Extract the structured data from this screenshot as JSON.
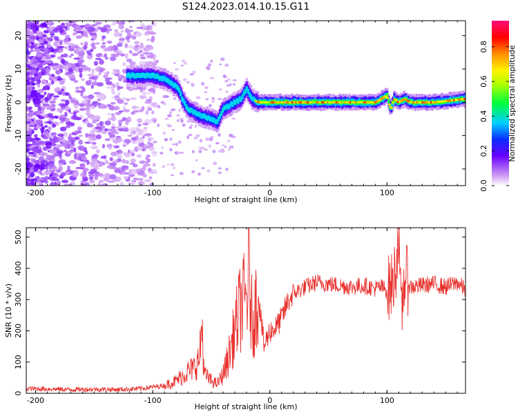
{
  "title": "S124.2023.014.10.15.G11",
  "chart_data": [
    {
      "type": "heatmap",
      "xlabel": "Height of straight line (km)",
      "ylabel": "Frequency (Hz)",
      "xlim": [
        -208,
        167
      ],
      "ylim": [
        -25,
        24.5
      ],
      "x_ticks": [
        -200,
        -100,
        0,
        100
      ],
      "y_ticks": [
        -20,
        -10,
        0,
        10,
        20
      ],
      "colorbar": {
        "label": "Normalized spectral amplitude",
        "ticks": [
          0.0,
          0.2,
          0.4,
          0.6,
          0.8
        ],
        "range": [
          0,
          0.95
        ]
      },
      "ridge": {
        "x": [
          -122,
          -110,
          -100,
          -90,
          -85,
          -78,
          -75,
          -70,
          -60,
          -50,
          -45,
          -40,
          -35,
          -30,
          -25,
          -20,
          -15,
          -10,
          -5,
          0,
          20,
          50,
          90,
          100,
          103,
          106,
          110,
          115,
          120,
          140,
          167
        ],
        "y": [
          8,
          8,
          8,
          7,
          6,
          4,
          1,
          -2,
          -4,
          -5,
          -6,
          -2,
          -1,
          0,
          1,
          4,
          1,
          0,
          0,
          0,
          0,
          0,
          0,
          2,
          -2,
          1,
          0,
          1,
          0,
          0,
          1
        ]
      }
    },
    {
      "type": "line",
      "xlabel": "Height of straight line (km)",
      "ylabel": "SNR (10 * v/v)",
      "xlim": [
        -208,
        167
      ],
      "ylim": [
        0,
        530
      ],
      "x_ticks": [
        -200,
        -100,
        0,
        100
      ],
      "y_ticks": [
        0,
        100,
        200,
        300,
        400,
        500
      ],
      "color": "#e8322f",
      "series": [
        {
          "x": [
            -208,
            -190,
            -170,
            -150,
            -130,
            -110,
            -100,
            -90,
            -80,
            -75,
            -70,
            -65,
            -60,
            -58,
            -56,
            -50,
            -45,
            -40,
            -35,
            -30,
            -25,
            -20,
            -18,
            -15,
            -10,
            -5,
            0,
            5,
            10,
            15,
            20,
            25,
            30,
            40,
            50,
            60,
            70,
            80,
            90,
            95,
            100,
            105,
            108,
            110,
            112,
            115,
            120,
            130,
            140,
            150,
            160,
            167
          ],
          "y": [
            15,
            14,
            12,
            13,
            12,
            15,
            20,
            25,
            40,
            55,
            70,
            80,
            110,
            230,
            60,
            40,
            30,
            60,
            120,
            200,
            280,
            300,
            380,
            220,
            320,
            150,
            200,
            210,
            240,
            290,
            320,
            330,
            340,
            355,
            350,
            345,
            340,
            345,
            335,
            340,
            330,
            350,
            420,
            530,
            230,
            380,
            340,
            345,
            350,
            340,
            355,
            330
          ]
        }
      ]
    }
  ]
}
